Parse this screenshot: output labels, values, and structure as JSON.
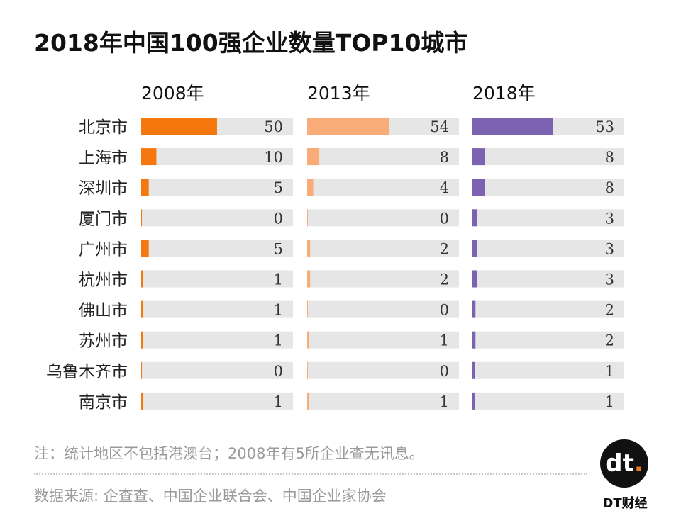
{
  "title": "2018年中国100强企业数量TOP10城市",
  "chart_data": {
    "type": "bar",
    "orientation": "horizontal",
    "title": "2018年中国100强企业数量TOP10城市",
    "categories": [
      "北京市",
      "上海市",
      "深圳市",
      "厦门市",
      "广州市",
      "杭州市",
      "佛山市",
      "苏州市",
      "乌鲁木齐市",
      "南京市"
    ],
    "series": [
      {
        "name": "2008年",
        "color": "#f5780f",
        "values": [
          50,
          10,
          5,
          0,
          5,
          1,
          1,
          1,
          0,
          1
        ]
      },
      {
        "name": "2013年",
        "color": "#f9ac77",
        "values": [
          54,
          8,
          4,
          0,
          2,
          2,
          0,
          1,
          0,
          1
        ]
      },
      {
        "name": "2018年",
        "color": "#7b63b2",
        "values": [
          53,
          8,
          8,
          3,
          3,
          3,
          2,
          2,
          1,
          1
        ]
      }
    ],
    "xlim": [
      0,
      100
    ],
    "track_color": "#e6e6e6",
    "grid": false
  },
  "note": "注：统计地区不包括港澳台；2008年有5所企业查无讯息。",
  "source": "数据来源: 企查查、中国企业联合会、中国企业家协会",
  "logo": {
    "mark_main": "dt",
    "mark_dot": ".",
    "brand": "DT财经"
  }
}
